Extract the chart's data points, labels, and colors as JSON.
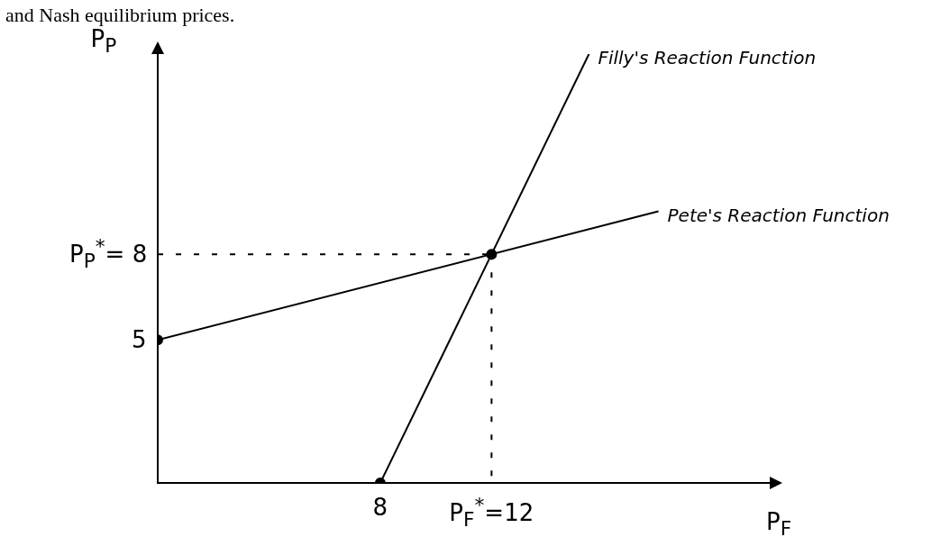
{
  "chart_data": {
    "type": "line",
    "annotations": [
      "and Nash equilibrium prices."
    ],
    "xlabel": "P$_{F}$",
    "ylabel": "P$_{P}$",
    "xlim": [
      0,
      22
    ],
    "ylim": [
      0,
      15
    ],
    "xticks": [
      8,
      {
        "value": 12,
        "label": "P$_{F}$$^{*}$=12"
      }
    ],
    "yticks": [
      5,
      {
        "value": 8,
        "label": "P$_{P}$$^{*}$= 8"
      }
    ],
    "grid": false,
    "legend": false,
    "series": [
      {
        "name": "Filly's Reaction Function",
        "x": [
          8,
          15.5
        ],
        "values": [
          0,
          15
        ],
        "color": "#000000",
        "marker": "none",
        "line_style": "solid"
      },
      {
        "name": "Pete's Reaction Function",
        "x": [
          0,
          18
        ],
        "values": [
          5,
          9.5
        ],
        "color": "#000000",
        "marker": "none",
        "line_style": "solid"
      },
      {
        "x": [
          0,
          12
        ],
        "values": [
          8,
          8
        ],
        "color": "#000000",
        "marker": "none",
        "line_style": "dashed"
      },
      {
        "x": [
          12,
          12
        ],
        "values": [
          8,
          0
        ],
        "color": "#000000",
        "marker": "none",
        "line_style": "dashed"
      },
      {
        "type": "scatter",
        "x": [
          0,
          8,
          12
        ],
        "values": [
          5,
          0,
          8
        ],
        "color": "#000000",
        "marker": "circle"
      }
    ]
  }
}
